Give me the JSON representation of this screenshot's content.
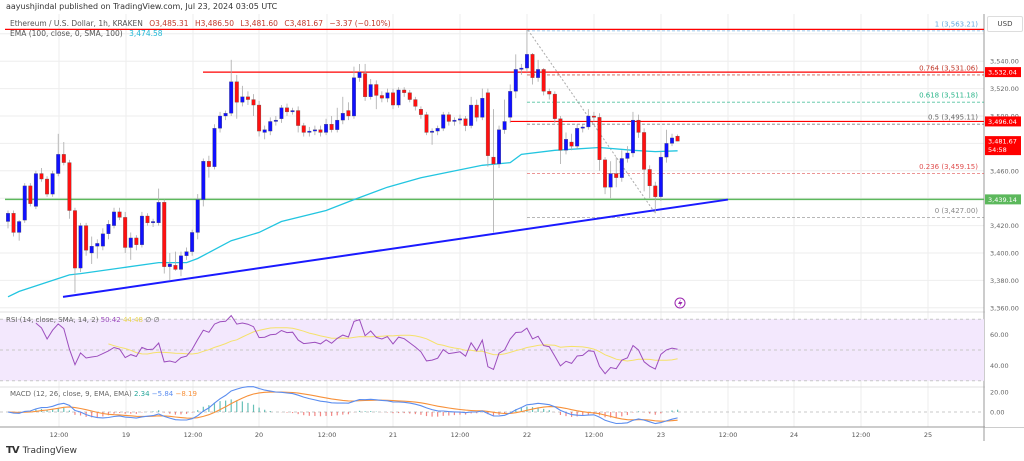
{
  "header": {
    "publisher": "aayushjindal published on TradingView.com, Jul 23, 2024 03:05 UTC",
    "symbol": "Ethereum / U.S. Dollar, 1h, KRAKEN",
    "open": "O3,485.31",
    "high": "H3,486.50",
    "low": "L3,481.60",
    "close": "C3,481.67",
    "change": "−3.37 (−0.10%)",
    "ema_label": "EMA (100, close, 0, SMA, 100)",
    "ema_value": "3,474.58"
  },
  "currency": "USD",
  "footer": {
    "logo_text": "TradingView"
  },
  "colors": {
    "up": "#1010ff",
    "down": "#ff1010",
    "ema": "#22c5e0",
    "trendline": "#1a1aff",
    "support": "#5cb85c",
    "resistance": "#ff0000",
    "rsi": "#9c4dbd",
    "rsi_ma": "#f5e16a",
    "macd": "#5b8def",
    "signal": "#f7913a",
    "hist_up": "#26a69a",
    "hist_down": "#ef5350"
  },
  "chart_data": {
    "type": "candlestick",
    "symbol": "Ethereum / U.S. Dollar",
    "interval": "1h",
    "ylim": [
      3350,
      3570
    ],
    "grid": true,
    "y_ticks": [
      "3,540.00",
      "3,520.00",
      "3,500.00",
      "3,460.00",
      "3,420.00",
      "3,400.00",
      "3,380.00",
      "3,360.00"
    ],
    "x_ticks": [
      "12:00",
      "19",
      "12:00",
      "20",
      "12:00",
      "21",
      "12:00",
      "22",
      "12:00",
      "23",
      "12:00",
      "24",
      "12:00",
      "25"
    ],
    "candles_ohlc": [
      [
        3423,
        3431,
        3418,
        3429
      ],
      [
        3429,
        3431,
        3412,
        3415
      ],
      [
        3415,
        3424,
        3409,
        3423
      ],
      [
        3424,
        3451,
        3422,
        3449
      ],
      [
        3449,
        3451,
        3434,
        3436
      ],
      [
        3434,
        3460,
        3432,
        3458
      ],
      [
        3458,
        3462,
        3452,
        3454
      ],
      [
        3454,
        3456,
        3441,
        3443
      ],
      [
        3443,
        3460,
        3441,
        3458
      ],
      [
        3458,
        3487,
        3456,
        3472
      ],
      [
        3472,
        3481,
        3464,
        3466
      ],
      [
        3466,
        3468,
        3425,
        3431
      ],
      [
        3431,
        3433,
        3371,
        3389
      ],
      [
        3389,
        3422,
        3386,
        3420
      ],
      [
        3420,
        3422,
        3398,
        3402
      ],
      [
        3400,
        3412,
        3392,
        3405
      ],
      [
        3405,
        3410,
        3396,
        3407
      ],
      [
        3405,
        3418,
        3402,
        3414
      ],
      [
        3414,
        3424,
        3410,
        3421
      ],
      [
        3420,
        3433,
        3418,
        3430
      ],
      [
        3430,
        3433,
        3424,
        3426
      ],
      [
        3426,
        3430,
        3400,
        3404
      ],
      [
        3404,
        3415,
        3395,
        3411
      ],
      [
        3411,
        3413,
        3402,
        3406
      ],
      [
        3406,
        3430,
        3404,
        3427
      ],
      [
        3427,
        3429,
        3420,
        3422
      ],
      [
        3422,
        3425,
        3419,
        3423
      ],
      [
        3422,
        3447,
        3420,
        3437
      ],
      [
        3437,
        3439,
        3385,
        3390
      ],
      [
        3390,
        3400,
        3380,
        3392
      ],
      [
        3391,
        3401,
        3387,
        3388
      ],
      [
        3388,
        3401,
        3383,
        3398
      ],
      [
        3398,
        3404,
        3395,
        3401
      ],
      [
        3401,
        3417,
        3398,
        3415
      ],
      [
        3415,
        3443,
        3410,
        3439
      ],
      [
        3439,
        3469,
        3434,
        3467
      ],
      [
        3467,
        3471,
        3455,
        3463
      ],
      [
        3463,
        3494,
        3461,
        3491
      ],
      [
        3491,
        3503,
        3488,
        3500
      ],
      [
        3500,
        3504,
        3497,
        3502
      ],
      [
        3502,
        3541,
        3500,
        3525
      ],
      [
        3525,
        3530,
        3498,
        3510
      ],
      [
        3510,
        3522,
        3507,
        3514
      ],
      [
        3514,
        3518,
        3508,
        3512
      ],
      [
        3512,
        3516,
        3500,
        3508
      ],
      [
        3508,
        3511,
        3485,
        3489
      ],
      [
        3488,
        3493,
        3483,
        3490
      ],
      [
        3489,
        3499,
        3486,
        3496
      ],
      [
        3496,
        3500,
        3493,
        3497
      ],
      [
        3498,
        3508,
        3495,
        3506
      ],
      [
        3506,
        3509,
        3500,
        3503
      ],
      [
        3503,
        3506,
        3501,
        3504
      ],
      [
        3504,
        3507,
        3488,
        3493
      ],
      [
        3493,
        3495,
        3485,
        3488
      ],
      [
        3488,
        3492,
        3485,
        3489
      ],
      [
        3489,
        3493,
        3486,
        3490
      ],
      [
        3490,
        3493,
        3485,
        3488
      ],
      [
        3488,
        3498,
        3486,
        3494
      ],
      [
        3494,
        3500,
        3488,
        3490
      ],
      [
        3490,
        3506,
        3488,
        3497
      ],
      [
        3497,
        3514,
        3494,
        3502
      ],
      [
        3504,
        3510,
        3497,
        3500
      ],
      [
        3500,
        3536,
        3498,
        3528
      ],
      [
        3528,
        3538,
        3525,
        3532
      ],
      [
        3531,
        3538,
        3511,
        3514
      ],
      [
        3514,
        3527,
        3512,
        3523
      ],
      [
        3523,
        3526,
        3505,
        3515
      ],
      [
        3515,
        3518,
        3510,
        3513
      ],
      [
        3513,
        3520,
        3510,
        3517
      ],
      [
        3517,
        3520,
        3505,
        3508
      ],
      [
        3508,
        3521,
        3506,
        3519
      ],
      [
        3519,
        3521,
        3514,
        3517
      ],
      [
        3517,
        3519,
        3510,
        3512
      ],
      [
        3512,
        3514,
        3504,
        3507
      ],
      [
        3505,
        3507,
        3498,
        3501
      ],
      [
        3501,
        3503,
        3486,
        3488
      ],
      [
        3488,
        3491,
        3479,
        3489
      ],
      [
        3489,
        3493,
        3486,
        3491
      ],
      [
        3491,
        3503,
        3489,
        3501
      ],
      [
        3501,
        3503,
        3493,
        3496
      ],
      [
        3496,
        3499,
        3493,
        3497
      ],
      [
        3497,
        3501,
        3494,
        3498
      ],
      [
        3498,
        3500,
        3489,
        3493
      ],
      [
        3493,
        3514,
        3491,
        3508
      ],
      [
        3508,
        3512,
        3496,
        3499
      ],
      [
        3499,
        3520,
        3497,
        3513
      ],
      [
        3517,
        3520,
        3463,
        3471
      ],
      [
        3470,
        3505,
        3415,
        3465
      ],
      [
        3465,
        3493,
        3462,
        3490
      ],
      [
        3490,
        3512,
        3487,
        3496
      ],
      [
        3499,
        3523,
        3495,
        3518
      ],
      [
        3518,
        3545,
        3513,
        3534
      ],
      [
        3534,
        3538,
        3530,
        3535
      ],
      [
        3535,
        3563,
        3532,
        3545
      ],
      [
        3545,
        3546,
        3523,
        3528
      ],
      [
        3528,
        3541,
        3525,
        3534
      ],
      [
        3534,
        3535,
        3515,
        3518
      ],
      [
        3518,
        3520,
        3512,
        3516
      ],
      [
        3516,
        3518,
        3495,
        3498
      ],
      [
        3498,
        3500,
        3465,
        3475
      ],
      [
        3475,
        3488,
        3472,
        3483
      ],
      [
        3481,
        3487,
        3475,
        3478
      ],
      [
        3478,
        3494,
        3476,
        3491
      ],
      [
        3491,
        3494,
        3488,
        3492
      ],
      [
        3492,
        3505,
        3490,
        3500
      ],
      [
        3500,
        3503,
        3496,
        3499
      ],
      [
        3499,
        3502,
        3460,
        3468
      ],
      [
        3468,
        3470,
        3443,
        3448
      ],
      [
        3448,
        3467,
        3440,
        3458
      ],
      [
        3458,
        3470,
        3448,
        3455
      ],
      [
        3455,
        3475,
        3452,
        3469
      ],
      [
        3469,
        3478,
        3466,
        3473
      ],
      [
        3473,
        3503,
        3470,
        3497
      ],
      [
        3497,
        3501,
        3484,
        3488
      ],
      [
        3488,
        3491,
        3445,
        3461
      ],
      [
        3461,
        3464,
        3440,
        3449
      ],
      [
        3449,
        3452,
        3429,
        3441
      ],
      [
        3441,
        3474,
        3438,
        3470
      ],
      [
        3470,
        3490,
        3466,
        3480
      ],
      [
        3480,
        3487,
        3478,
        3484
      ],
      [
        3485.31,
        3486.5,
        3481.6,
        3481.67
      ]
    ],
    "ema_100": [
      3368,
      3372,
      3384,
      3385,
      3389,
      3393,
      3393,
      3396,
      3409,
      3415,
      3423,
      3431,
      3439,
      3448,
      3455,
      3464,
      3466,
      3472,
      3475,
      3477,
      3475,
      3474,
      3474.58
    ],
    "trendline": {
      "from": 3368,
      "to": 3439
    },
    "support_line": {
      "price": 3439.14,
      "tag": "3,439.14"
    },
    "resistance_lines": [
      {
        "price": 3563.21
      },
      {
        "price": 3532.04,
        "tag": "3,532.04"
      },
      {
        "price": 3496.04,
        "tag": "3,496.04"
      }
    ],
    "last_price_tag": {
      "price": "3,481.67",
      "countdown": "54:58"
    },
    "fibonacci": [
      {
        "label": "1 (3,563.21)",
        "price": 3563.21,
        "color": "#64a8e0"
      },
      {
        "label": "0.764 (3,531.06)",
        "price": 3531.06,
        "color": "#c0392b"
      },
      {
        "label": "0.618 (3,511.18)",
        "price": 3511.18,
        "color": "#2bb58a"
      },
      {
        "label": "0.5 (3,495.11)",
        "price": 3495.11,
        "color": "#666666"
      },
      {
        "label": "0.236 (3,459.15)",
        "price": 3459.15,
        "color": "#e05050"
      },
      {
        "label": "0 (3,427.00)",
        "price": 3427.0,
        "color": "#888888"
      }
    ],
    "rsi": {
      "label": "RSI (14, close, SMA, 14, 2)",
      "value": "50.42",
      "ma_value": "44.48",
      "extra": "∅ ∅",
      "ticks": [
        "60.00",
        "40.00"
      ]
    },
    "macd": {
      "label": "MACD (12, 26, close, 9, EMA, EMA)",
      "hist": "2.34",
      "macd": "−5.84",
      "signal": "−8.19",
      "ticks": [
        "20.00",
        "0.00"
      ]
    }
  }
}
